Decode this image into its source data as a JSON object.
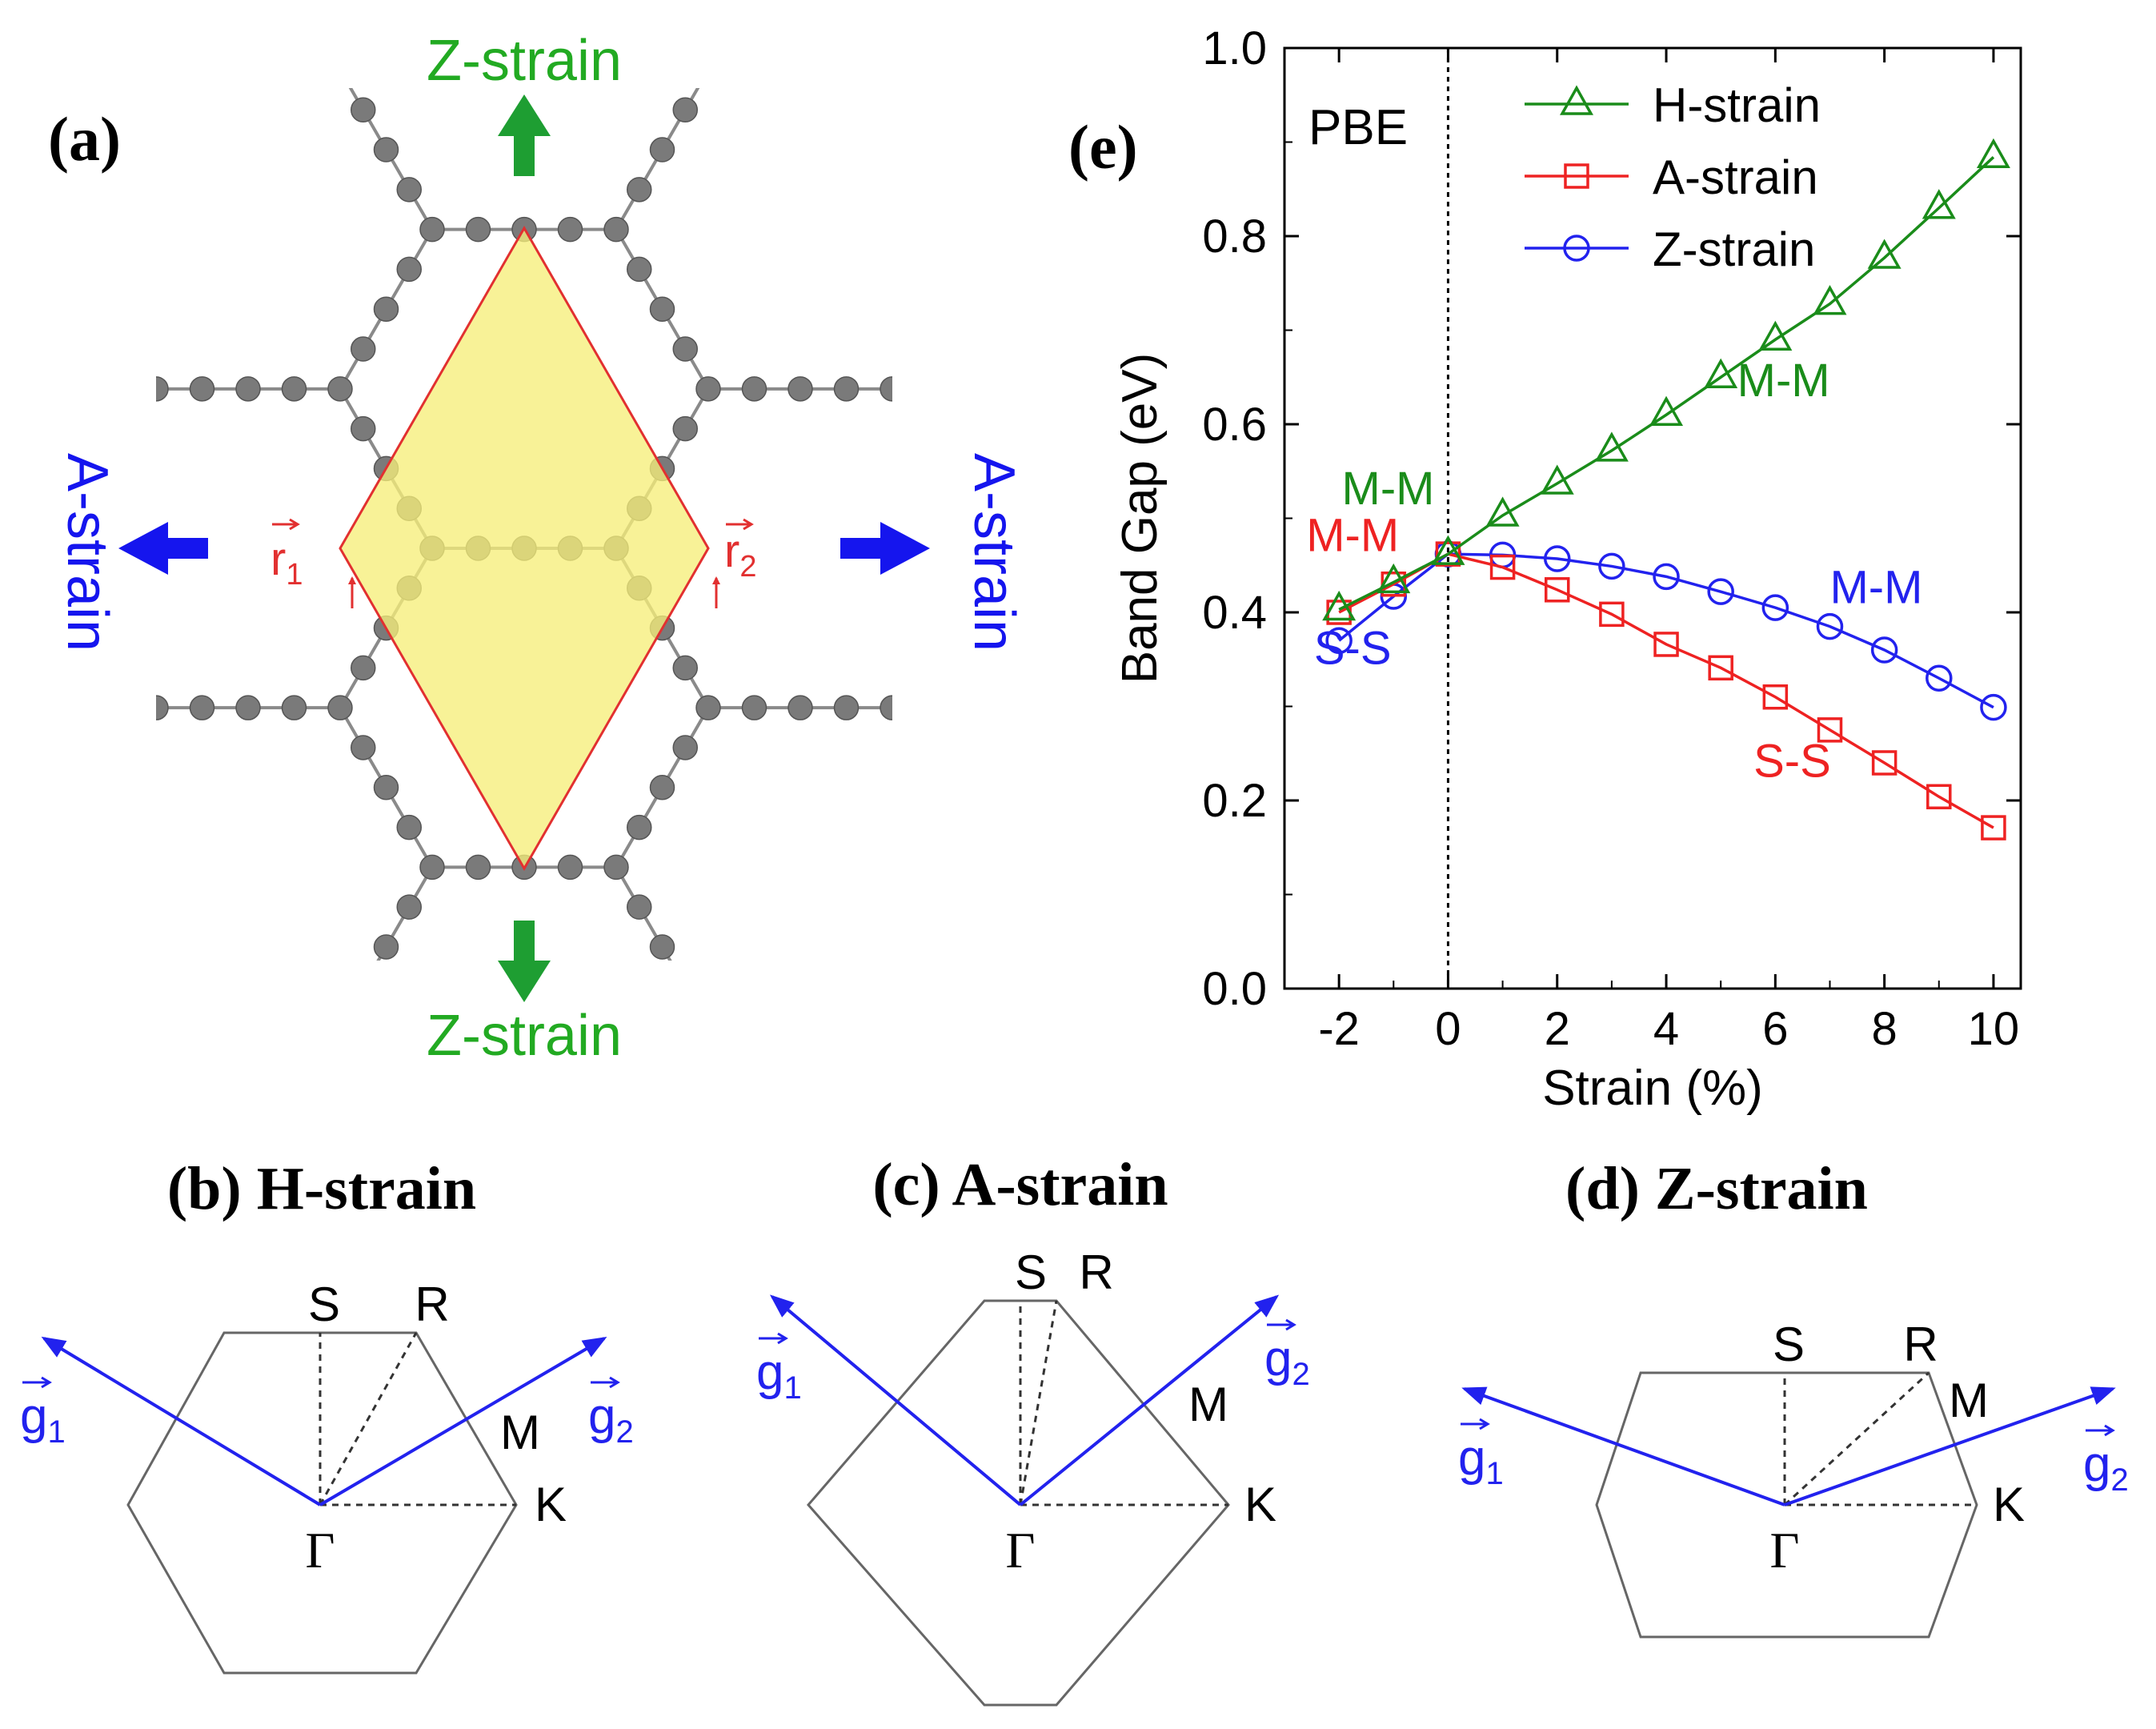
{
  "panel_a": {
    "label": "(a)",
    "top_arrow_label": "Z-strain",
    "bottom_arrow_label": "Z-strain",
    "left_arrow_label": "A-strain",
    "right_arrow_label": "A-strain",
    "vector1": "r",
    "vector1_sub": "1",
    "vector2": "r",
    "vector2_sub": "2"
  },
  "panels_bz": [
    {
      "label": "(b) H-strain",
      "S": "S",
      "R": "R",
      "M": "M",
      "K": "K",
      "Gamma": "Γ",
      "g1": "g",
      "g1_sub": "1",
      "g2": "g",
      "g2_sub": "2"
    },
    {
      "label": "(c) A-strain",
      "S": "S",
      "R": "R",
      "M": "M",
      "K": "K",
      "Gamma": "Γ",
      "g1": "g",
      "g1_sub": "1",
      "g2": "g",
      "g2_sub": "2"
    },
    {
      "label": "(d) Z-strain",
      "S": "S",
      "R": "R",
      "M": "M",
      "K": "K",
      "Gamma": "Γ",
      "g1": "g",
      "g1_sub": "1",
      "g2": "g",
      "g2_sub": "2"
    }
  ],
  "colors": {
    "h_strain": "#1a8c1a",
    "a_strain": "#ee2222",
    "z_strain": "#2222ee",
    "green_label": "#22aa22",
    "arrow_green": "#1e9e32",
    "arrow_blue": "#1515ee",
    "atom": "#7a7a7a",
    "bond": "#8a8a8a",
    "cell_fill": "#f6ee7a",
    "cell_edge": "#e23030"
  },
  "chart_data": {
    "type": "line",
    "panel_label": "(e)",
    "method_label": "PBE",
    "xlabel": "Strain (%)",
    "ylabel": "Band Gap (eV)",
    "xlim": [
      -3,
      10.5
    ],
    "ylim": [
      0.0,
      1.0
    ],
    "x_ticks": [
      -2,
      0,
      2,
      4,
      6,
      8,
      10
    ],
    "x_tick_labels": [
      "-2",
      "0",
      "2",
      "4",
      "6",
      "8",
      "10"
    ],
    "y_ticks": [
      0.0,
      0.2,
      0.4,
      0.6,
      0.8,
      1.0
    ],
    "y_tick_labels": [
      "0.0",
      "0.2",
      "0.4",
      "0.6",
      "0.8",
      "1.0"
    ],
    "x": [
      -2,
      -1,
      0,
      1,
      2,
      3,
      4,
      5,
      6,
      7,
      8,
      9,
      10
    ],
    "legend_position": "top-right",
    "series": [
      {
        "name": "H-strain",
        "marker": "triangle",
        "values": [
          0.403,
          0.432,
          0.462,
          0.503,
          0.537,
          0.572,
          0.61,
          0.65,
          0.69,
          0.728,
          0.777,
          0.83,
          0.884
        ]
      },
      {
        "name": "A-strain",
        "marker": "square",
        "values": [
          0.4,
          0.43,
          0.462,
          0.448,
          0.424,
          0.398,
          0.366,
          0.341,
          0.31,
          0.275,
          0.24,
          0.204,
          0.171
        ]
      },
      {
        "name": "Z-strain",
        "marker": "circle",
        "values": [
          0.37,
          0.417,
          0.462,
          0.461,
          0.457,
          0.449,
          0.438,
          0.422,
          0.405,
          0.385,
          0.36,
          0.33,
          0.299
        ]
      }
    ],
    "annotations": [
      {
        "text": "M-M",
        "series": "H-strain",
        "x": 5.3,
        "y": 0.63,
        "anchor": "start"
      },
      {
        "text": "M-M",
        "series": "H-strain",
        "x": -1.1,
        "y": 0.515,
        "anchor": "middle"
      },
      {
        "text": "M-M",
        "series": "A-strain",
        "x": -1.75,
        "y": 0.465,
        "anchor": "middle"
      },
      {
        "text": "S-S",
        "series": "Z-strain",
        "x": -1.75,
        "y": 0.345,
        "anchor": "middle"
      },
      {
        "text": "M-M",
        "series": "Z-strain",
        "x": 7.0,
        "y": 0.41,
        "anchor": "start"
      },
      {
        "text": "S-S",
        "series": "A-strain",
        "x": 5.6,
        "y": 0.225,
        "anchor": "start"
      }
    ]
  }
}
